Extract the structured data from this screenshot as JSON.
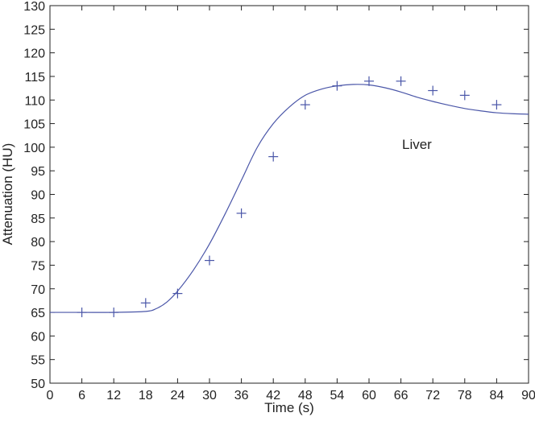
{
  "chart_data": {
    "type": "scatter",
    "title": "",
    "xlabel": "Time (s)",
    "ylabel": "Attenuation (HU)",
    "xlim": [
      0,
      90
    ],
    "ylim": [
      50,
      130
    ],
    "xticks": [
      0,
      6,
      12,
      18,
      24,
      30,
      36,
      42,
      48,
      54,
      60,
      66,
      72,
      78,
      84,
      90
    ],
    "yticks": [
      50,
      55,
      60,
      65,
      70,
      75,
      80,
      85,
      90,
      95,
      100,
      105,
      110,
      115,
      120,
      125,
      130
    ],
    "grid": false,
    "annotation": "Liver",
    "colors": {
      "series": "#4a56a8",
      "axis": "#222222"
    },
    "series": [
      {
        "marker": "plus",
        "x": [
          6,
          12,
          18,
          24,
          30,
          36,
          42,
          48,
          54,
          60,
          66,
          72,
          78,
          84
        ],
        "y": [
          65,
          65,
          67,
          69,
          76,
          86,
          98,
          109,
          113,
          114,
          114,
          112,
          111,
          109
        ]
      },
      {
        "marker": "none",
        "style": "line",
        "x": [
          0,
          6,
          12,
          18,
          20,
          22,
          24,
          27,
          30,
          33,
          36,
          39,
          42,
          45,
          48,
          51,
          54,
          57,
          60,
          63,
          66,
          69,
          72,
          75,
          78,
          81,
          84,
          87,
          90
        ],
        "y": [
          65,
          65,
          65,
          65.2,
          65.8,
          67.2,
          69.5,
          74,
          79.5,
          86,
          93,
          100,
          105,
          108.5,
          111,
          112.3,
          113,
          113.3,
          113.2,
          112.6,
          111.7,
          110.6,
          109.7,
          108.9,
          108.2,
          107.7,
          107.3,
          107.1,
          107
        ]
      }
    ]
  }
}
